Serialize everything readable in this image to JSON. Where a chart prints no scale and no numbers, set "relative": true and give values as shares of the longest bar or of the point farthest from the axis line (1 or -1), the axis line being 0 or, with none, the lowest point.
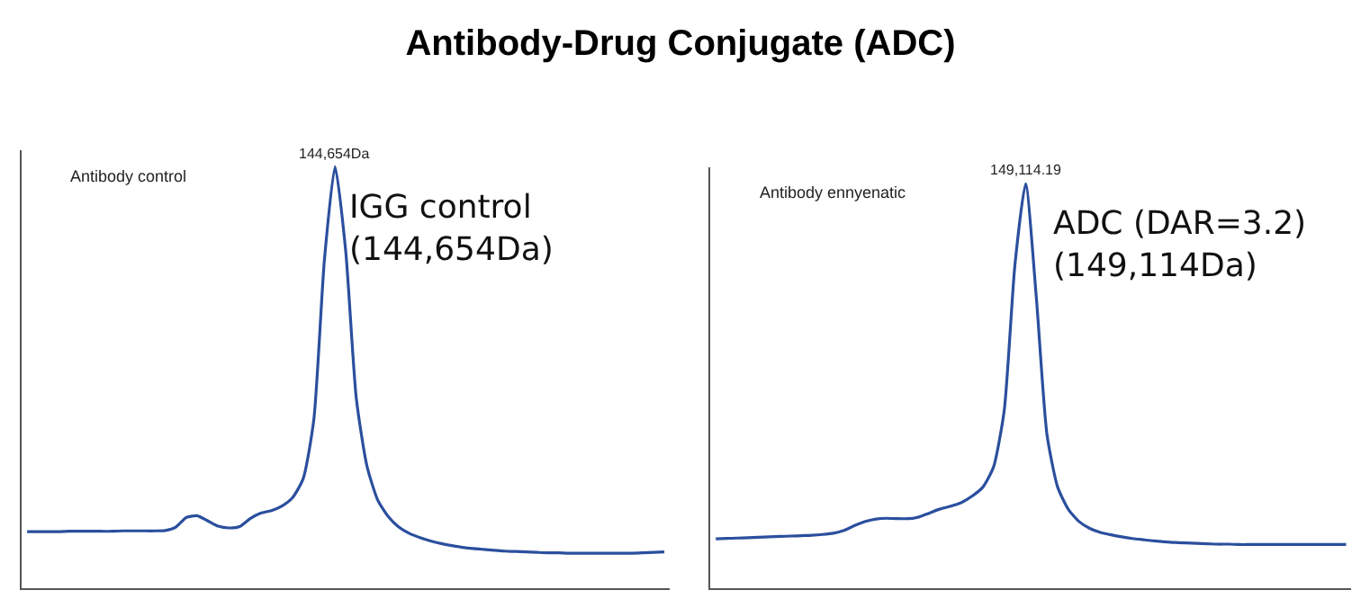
{
  "chart_data": [
    {
      "type": "line",
      "title": "Antibody-Drug Conjugate (ADC)",
      "relative": true,
      "marker": "none",
      "line_style": "solid",
      "categories": [
        null,
        null,
        null,
        null,
        null,
        null,
        null,
        null,
        null,
        null,
        null,
        null,
        null,
        null,
        null,
        null,
        null,
        null,
        null,
        null,
        null,
        null,
        null,
        null,
        null,
        null,
        null,
        null,
        null,
        null,
        null,
        null,
        null,
        null,
        null,
        null,
        null,
        null,
        null,
        null,
        null,
        null,
        null,
        null,
        null,
        null,
        null,
        null,
        null,
        null,
        null,
        null,
        null,
        null,
        null,
        null,
        null,
        null,
        null,
        null,
        null
      ],
      "series": [
        {
          "color": "#2b4f9e",
          "values": [
            0.134,
            0.134,
            0.134,
            0.134,
            0.135,
            0.135,
            0.135,
            0.135,
            0.135,
            0.136,
            0.136,
            0.136,
            0.136,
            0.137,
            0.145,
            0.168,
            0.172,
            0.16,
            0.147,
            0.143,
            0.146,
            0.165,
            0.178,
            0.184,
            0.195,
            0.215,
            0.26,
            0.4,
            0.78,
            1.0,
            0.8,
            0.45,
            0.29,
            0.21,
            0.17,
            0.145,
            0.13,
            0.12,
            0.112,
            0.106,
            0.101,
            0.097,
            0.094,
            0.092,
            0.09,
            0.088,
            0.087,
            0.086,
            0.085,
            0.084,
            0.084,
            0.083,
            0.083,
            0.083,
            0.083,
            0.083,
            0.083,
            0.083,
            0.084,
            0.085,
            0.086
          ]
        }
      ],
      "annotations": [
        "Antibody control",
        {
          "text": "144,654Da",
          "y": 1.0
        },
        "IGG control\n(144,654Da)"
      ]
    },
    {
      "type": "line",
      "relative": true,
      "marker": "none",
      "line_style": "solid",
      "categories": [
        null,
        null,
        null,
        null,
        null,
        null,
        null,
        null,
        null,
        null,
        null,
        null,
        null,
        null,
        null,
        null,
        null,
        null,
        null,
        null,
        null,
        null,
        null,
        null,
        null,
        null,
        null,
        null,
        null,
        null,
        null,
        null,
        null,
        null,
        null,
        null,
        null,
        null,
        null,
        null,
        null,
        null,
        null,
        null,
        null,
        null,
        null,
        null,
        null,
        null,
        null,
        null,
        null,
        null,
        null,
        null,
        null,
        null,
        null,
        null
      ],
      "series": [
        {
          "color": "#2b4f9e",
          "values": [
            0.122,
            0.123,
            0.124,
            0.125,
            0.126,
            0.127,
            0.128,
            0.129,
            0.13,
            0.131,
            0.133,
            0.136,
            0.143,
            0.155,
            0.165,
            0.171,
            0.173,
            0.172,
            0.172,
            0.176,
            0.186,
            0.196,
            0.203,
            0.212,
            0.228,
            0.25,
            0.3,
            0.44,
            0.8,
            1.0,
            0.72,
            0.38,
            0.25,
            0.195,
            0.165,
            0.148,
            0.138,
            0.132,
            0.127,
            0.123,
            0.12,
            0.117,
            0.115,
            0.113,
            0.112,
            0.111,
            0.11,
            0.109,
            0.109,
            0.108,
            0.108,
            0.108,
            0.108,
            0.108,
            0.108,
            0.108,
            0.108,
            0.108,
            0.108,
            0.108
          ]
        }
      ],
      "annotations": [
        "Antibody ennyenatic",
        {
          "text": "149,114.19",
          "y": 1.0
        },
        "ADC (DAR=3.2)\n(149,114Da)"
      ]
    }
  ]
}
